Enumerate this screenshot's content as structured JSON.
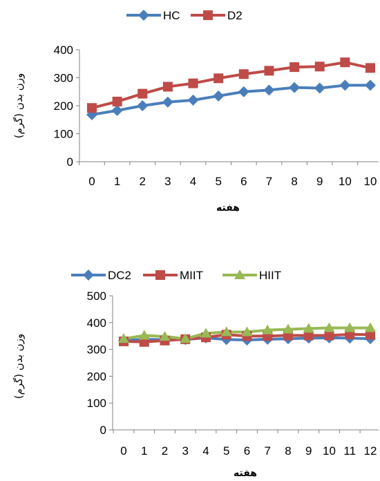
{
  "chart_data": [
    {
      "type": "line",
      "categories": [
        "0",
        "1",
        "2",
        "3",
        "4",
        "5",
        "6",
        "7",
        "8",
        "9",
        "10",
        "10"
      ],
      "ylim": [
        0,
        400
      ],
      "yticks": [
        "0",
        "100",
        "200",
        "300",
        "400"
      ],
      "xlabel": "هفته",
      "ylabel": "وزن بدن (گرم)",
      "grid": false,
      "legend_position": "top",
      "series": [
        {
          "name": "HC",
          "color": "#4a7ebb",
          "marker": "diamond",
          "values": [
            168,
            183,
            200,
            213,
            220,
            235,
            250,
            256,
            265,
            263,
            273,
            273
          ]
        },
        {
          "name": "D2",
          "color": "#be4b48",
          "marker": "square",
          "values": [
            192,
            215,
            243,
            268,
            280,
            298,
            313,
            325,
            338,
            340,
            355,
            335
          ]
        }
      ]
    },
    {
      "type": "line",
      "categories": [
        "0",
        "1",
        "2",
        "3",
        "4",
        "5",
        "6",
        "7",
        "8",
        "9",
        "10",
        "11",
        "12"
      ],
      "ylim": [
        0,
        500
      ],
      "yticks": [
        "0",
        "100",
        "200",
        "300",
        "400",
        "500"
      ],
      "xlabel": "هفته",
      "ylabel": "وزن بدن (گرم)",
      "grid": false,
      "legend_position": "top",
      "series": [
        {
          "name": "DC2",
          "color": "#4a7ebb",
          "marker": "diamond",
          "values": [
            333,
            338,
            336,
            337,
            343,
            337,
            335,
            338,
            340,
            342,
            343,
            342,
            340
          ]
        },
        {
          "name": "MIIT",
          "color": "#be4b48",
          "marker": "square",
          "values": [
            330,
            328,
            333,
            338,
            345,
            355,
            350,
            350,
            352,
            352,
            352,
            356,
            355
          ]
        },
        {
          "name": "HIIT",
          "color": "#98b954",
          "marker": "triangle",
          "values": [
            340,
            352,
            348,
            340,
            360,
            365,
            365,
            372,
            375,
            378,
            380,
            380,
            380
          ]
        }
      ]
    }
  ]
}
